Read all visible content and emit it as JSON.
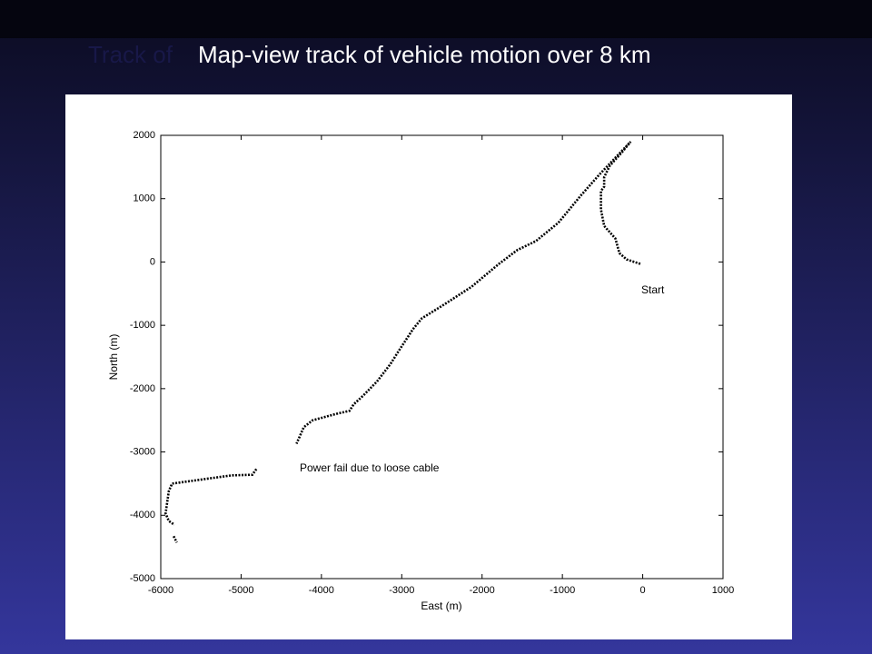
{
  "heading": {
    "ghost": "Track of",
    "title": "Map-view track of vehicle motion over 8 km"
  },
  "chart_data": {
    "type": "line",
    "x_label": "East (m)",
    "y_label": "North (m)",
    "annotations": [
      "Start",
      "Power fail due to loose cable"
    ],
    "series": [
      {
        "color": "#000000",
        "x": [
          -30,
          -200,
          -290,
          -340,
          -480,
          -520,
          -520,
          -480,
          -480,
          -410,
          -260,
          -150,
          -540,
          -770,
          -1050,
          -1330,
          -1560,
          -1790,
          -2130,
          -2470,
          -2750,
          -2860,
          -3030,
          -3140,
          -3310,
          -3480,
          -3600,
          -3650,
          -3820,
          -4110,
          -4220,
          -4310,
          null,
          -4810,
          -4860,
          -5120,
          -5520,
          -5860,
          -5900,
          -5940,
          -5900,
          -5830,
          null,
          -5840,
          -5800
        ],
        "values": [
          -30,
          40,
          140,
          370,
          570,
          830,
          1120,
          1190,
          1340,
          1520,
          1730,
          1900,
          1380,
          1050,
          620,
          330,
          190,
          -30,
          -390,
          -670,
          -890,
          -1060,
          -1390,
          -1610,
          -1890,
          -2110,
          -2250,
          -2350,
          -2400,
          -2500,
          -2610,
          -2870,
          null,
          -3270,
          -3360,
          -3370,
          -3440,
          -3500,
          -3620,
          -3970,
          -4090,
          -4150,
          null,
          -4330,
          -4430
        ]
      }
    ],
    "xlim": [
      -6000,
      1000
    ],
    "ylim": [
      -5000,
      2000
    ],
    "xticks": [
      -6000,
      -5000,
      -4000,
      -3000,
      -2000,
      -1000,
      0,
      1000
    ],
    "yticks": [
      -5000,
      -4000,
      -3000,
      -2000,
      -1000,
      0,
      1000,
      2000
    ]
  }
}
